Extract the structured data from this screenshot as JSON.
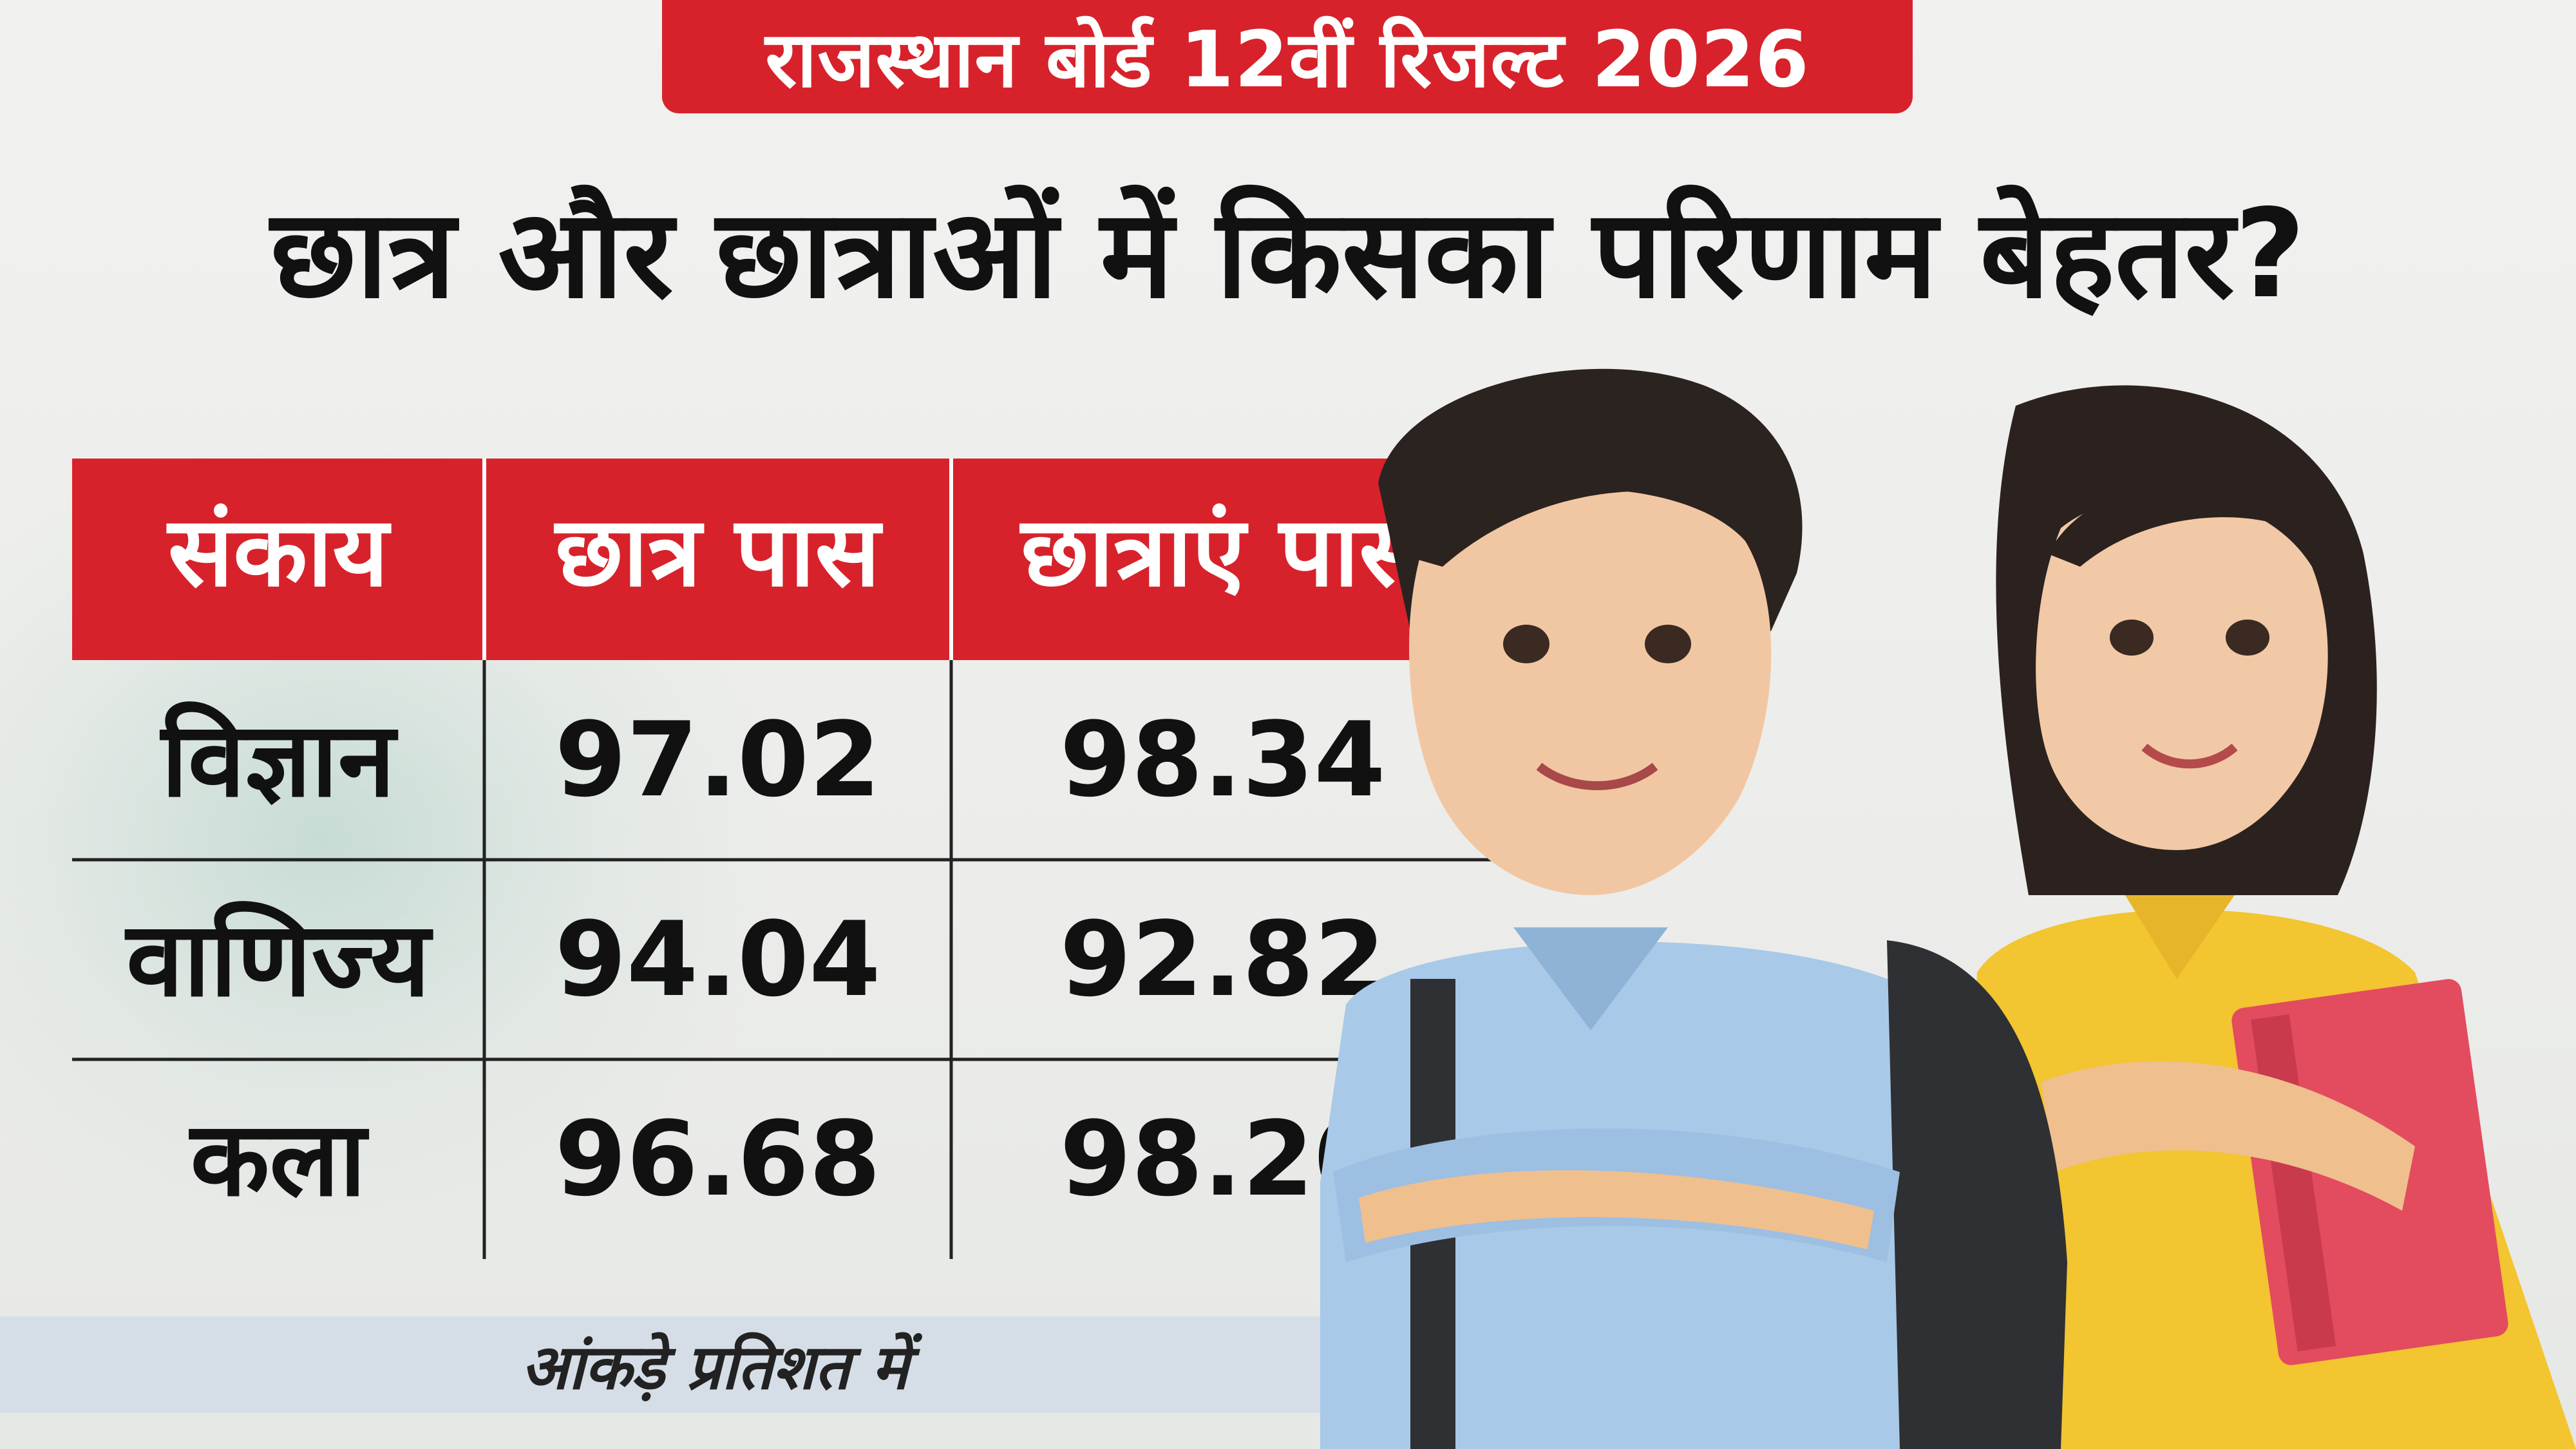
{
  "banner": {
    "text": "राजस्थान बोर्ड 12वीं रिजल्ट 2026"
  },
  "headline": "छात्र और छात्राओं में किसका परिणाम बेहतर?",
  "footnote": "आंकड़े प्रतिशत में",
  "colors": {
    "accent": "#d7222b",
    "text": "#111111",
    "note_bg": "#d5dee6"
  },
  "illustration": {
    "description_icons": [
      "student-boy-icon",
      "student-girl-icon",
      "backpack-icon",
      "books-icon"
    ]
  },
  "chart_data": {
    "type": "table",
    "columns": [
      "संकाय",
      "छात्र पास",
      "छात्राएं पास"
    ],
    "rows": [
      {
        "category": "विज्ञान",
        "values": [
          "97.02",
          "98.34"
        ]
      },
      {
        "category": "वाणिज्य",
        "values": [
          "94.04",
          "92.82"
        ]
      },
      {
        "category": "कला",
        "values": [
          "96.68",
          "98.20"
        ]
      }
    ],
    "series": [
      {
        "name": "छात्र पास",
        "values": [
          97.02,
          94.04,
          96.68
        ]
      },
      {
        "name": "छात्राएं पास",
        "values": [
          98.34,
          92.82,
          98.2
        ]
      }
    ],
    "categories": [
      "विज्ञान",
      "वाणिज्य",
      "कला"
    ]
  }
}
